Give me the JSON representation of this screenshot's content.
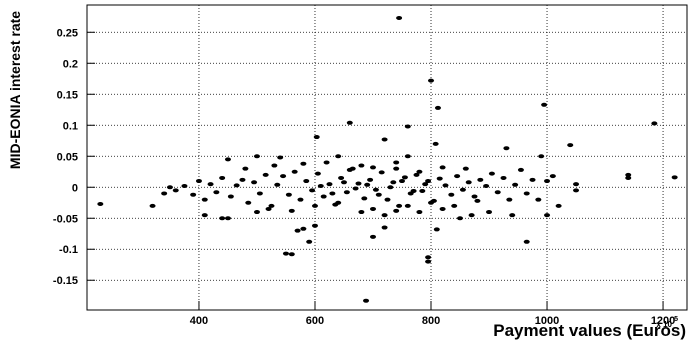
{
  "chart_data": {
    "type": "scatter",
    "ylabel": "MID-EONIA interest rate",
    "xlabel": "Payment values (Euros)",
    "x_multiplier_label": "x 10",
    "x_multiplier_exponent": "5",
    "xlim": [
      207,
      1243
    ],
    "ylim": [
      -0.198,
      0.294
    ],
    "xticks": [
      400,
      600,
      800,
      1000,
      1200
    ],
    "yticks": [
      -0.15,
      -0.1,
      -0.05,
      0,
      0.05,
      0.1,
      0.15,
      0.2,
      0.25
    ],
    "grid": true,
    "series": [
      {
        "color": "#000000",
        "x": [
          230,
          745,
          800,
          812,
          995,
          1185,
          1220,
          660,
          760,
          720,
          603,
          808,
          930,
          1040,
          550,
          560,
          590,
          688,
          795,
          795,
          965,
          580,
          600,
          570,
          810,
          720,
          450,
          500,
          540,
          640,
          1140,
          1140,
          1050,
          1050,
          320,
          340,
          350,
          990,
          1000,
          410,
          440,
          450,
          700,
          760,
          850,
          870,
          900,
          940,
          680,
          740,
          360,
          375,
          390,
          400,
          410,
          420,
          430,
          440,
          455,
          465,
          475,
          485,
          495,
          505,
          515,
          525,
          535,
          545,
          555,
          565,
          575,
          585,
          595,
          605,
          615,
          625,
          635,
          645,
          655,
          665,
          675,
          685,
          695,
          705,
          715,
          725,
          735,
          745,
          755,
          765,
          775,
          785,
          795,
          805,
          815,
          825,
          835,
          845,
          855,
          865,
          875,
          885,
          895,
          905,
          915,
          925,
          935,
          945,
          955,
          965,
          975,
          985,
          1000,
          1010,
          1020,
          500,
          520,
          560,
          600,
          640,
          480,
          530,
          580,
          620,
          660,
          700,
          740,
          780,
          820,
          860,
          610,
          630,
          650,
          670,
          690,
          710,
          730,
          750,
          770,
          790,
          680,
          700,
          720,
          740,
          760,
          780,
          800,
          820,
          840,
          880
        ],
        "values": [
          -0.027,
          0.273,
          0.172,
          0.128,
          0.133,
          0.103,
          0.016,
          0.104,
          0.098,
          0.077,
          0.081,
          0.07,
          0.063,
          0.068,
          -0.107,
          -0.108,
          -0.088,
          -0.183,
          -0.113,
          -0.12,
          -0.088,
          -0.067,
          -0.062,
          -0.07,
          -0.068,
          -0.065,
          0.045,
          0.05,
          0.048,
          0.05,
          0.015,
          0.02,
          0.005,
          -0.005,
          -0.03,
          -0.01,
          0,
          0.05,
          -0.045,
          -0.045,
          -0.05,
          -0.05,
          -0.08,
          0.05,
          -0.05,
          -0.045,
          -0.04,
          -0.045,
          0.035,
          0.04,
          -0.005,
          0.002,
          -0.012,
          0.01,
          -0.02,
          0.005,
          -0.008,
          0.015,
          -0.015,
          0.003,
          0.012,
          -0.025,
          0.008,
          -0.01,
          0.02,
          -0.03,
          0.004,
          0.018,
          -0.012,
          0.025,
          -0.02,
          0.01,
          -0.005,
          0.022,
          -0.015,
          0.005,
          -0.028,
          0.015,
          -0.008,
          0.03,
          0.006,
          -0.018,
          0.012,
          -0.004,
          0.024,
          -0.02,
          0.008,
          -0.03,
          0.016,
          -0.01,
          0.02,
          -0.006,
          0.01,
          -0.022,
          0.014,
          0.003,
          -0.012,
          0.018,
          -0.004,
          0.008,
          -0.015,
          0.012,
          0.002,
          0.022,
          -0.008,
          0.015,
          -0.02,
          0.004,
          0.028,
          -0.01,
          0.012,
          -0.02,
          0.01,
          0.018,
          -0.03,
          -0.04,
          -0.035,
          -0.038,
          -0.03,
          -0.025,
          0.03,
          0.035,
          0.038,
          0.04,
          0.028,
          0.032,
          0.03,
          0.025,
          0.032,
          0.03,
          0.002,
          -0.01,
          0.008,
          -0.002,
          0.004,
          -0.012,
          0,
          0.01,
          -0.006,
          0.005,
          -0.04,
          -0.035,
          -0.045,
          -0.038,
          -0.03,
          -0.04,
          -0.025,
          -0.035,
          -0.03,
          -0.022
        ]
      }
    ]
  }
}
